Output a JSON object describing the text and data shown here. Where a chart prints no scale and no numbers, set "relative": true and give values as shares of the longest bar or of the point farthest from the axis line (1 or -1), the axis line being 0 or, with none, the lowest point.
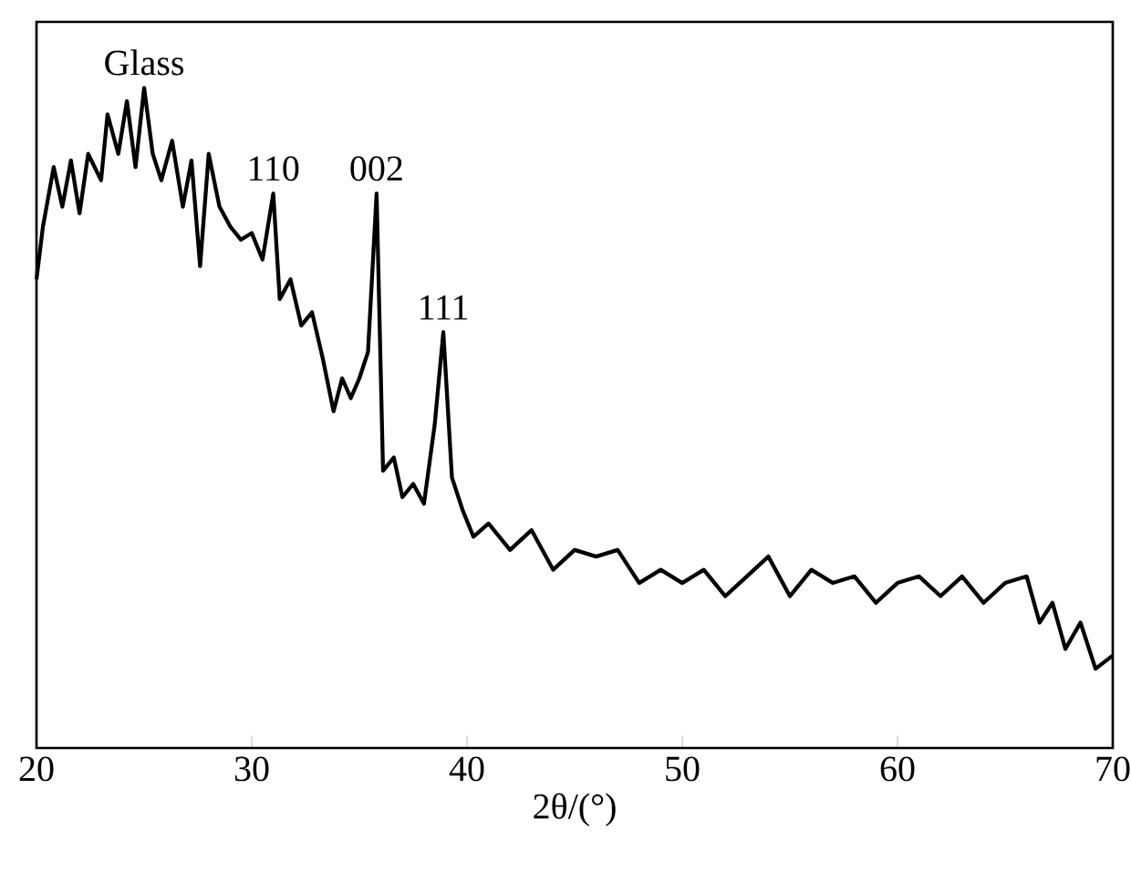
{
  "chart_data": {
    "type": "line",
    "relative": true,
    "color": "#000000",
    "xlabel": "2θ/(°)",
    "xlim": [
      20,
      70
    ],
    "xticks": [
      20,
      30,
      40,
      50,
      60,
      70
    ],
    "x": [
      20,
      20.3,
      20.8,
      21.2,
      21.6,
      22,
      22.4,
      23,
      23.3,
      23.8,
      24.2,
      24.6,
      25,
      25.4,
      25.8,
      26.3,
      26.8,
      27.2,
      27.6,
      28,
      28.5,
      29,
      29.5,
      30,
      30.5,
      31,
      31.3,
      31.8,
      32.3,
      32.8,
      33.3,
      33.8,
      34.2,
      34.6,
      35,
      35.4,
      35.8,
      36.1,
      36.6,
      37,
      37.5,
      38,
      38.5,
      38.9,
      39.3,
      39.8,
      40.3,
      41,
      42,
      43,
      44,
      45,
      46,
      47,
      48,
      49,
      50,
      51,
      52,
      53,
      54,
      55,
      56,
      57,
      58,
      59,
      60,
      61,
      62,
      63,
      64,
      65,
      66,
      66.6,
      67.2,
      67.8,
      68.5,
      69.2,
      70
    ],
    "values": [
      0.71,
      0.79,
      0.88,
      0.82,
      0.89,
      0.81,
      0.9,
      0.86,
      0.96,
      0.9,
      0.98,
      0.88,
      1.0,
      0.9,
      0.86,
      0.92,
      0.82,
      0.89,
      0.73,
      0.9,
      0.82,
      0.79,
      0.77,
      0.78,
      0.74,
      0.84,
      0.68,
      0.71,
      0.64,
      0.66,
      0.59,
      0.51,
      0.56,
      0.53,
      0.56,
      0.6,
      0.84,
      0.42,
      0.44,
      0.38,
      0.4,
      0.37,
      0.49,
      0.63,
      0.41,
      0.36,
      0.32,
      0.34,
      0.3,
      0.33,
      0.27,
      0.3,
      0.29,
      0.3,
      0.25,
      0.27,
      0.25,
      0.27,
      0.23,
      0.26,
      0.29,
      0.23,
      0.27,
      0.25,
      0.26,
      0.22,
      0.25,
      0.26,
      0.23,
      0.26,
      0.22,
      0.25,
      0.26,
      0.19,
      0.22,
      0.15,
      0.19,
      0.12,
      0.14
    ],
    "annotations": [
      {
        "text": "Glass",
        "x": 25,
        "y": 1.0
      },
      {
        "text": "110",
        "x": 31,
        "y": 0.84
      },
      {
        "text": "002",
        "x": 35.8,
        "y": 0.84
      },
      {
        "text": "111",
        "x": 38.9,
        "y": 0.63
      }
    ]
  }
}
